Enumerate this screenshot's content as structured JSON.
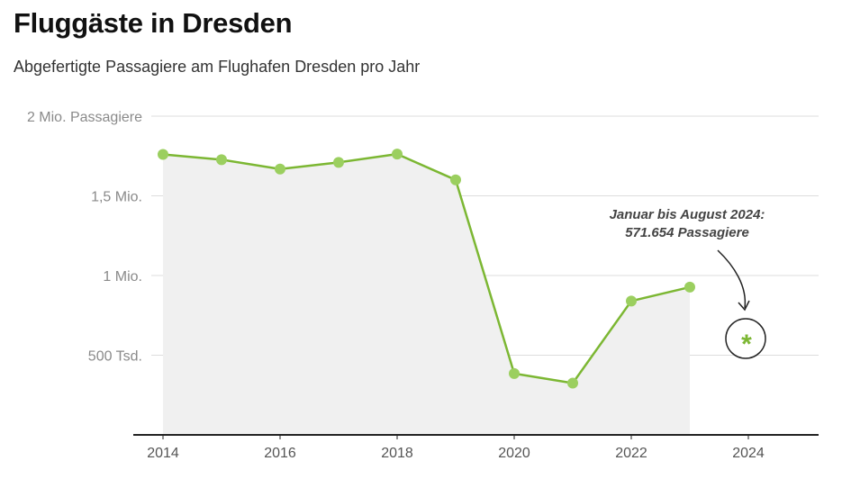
{
  "chart_data": {
    "type": "line",
    "title": "Fluggäste in Dresden",
    "subtitle": "Abgefertigte Passagiere am Flughafen Dresden pro Jahr",
    "xlabel": "",
    "ylabel": "",
    "x": [
      2014,
      2015,
      2016,
      2017,
      2018,
      2019,
      2020,
      2021,
      2022,
      2023
    ],
    "series": [
      {
        "values": [
          1760000,
          1727000,
          1668000,
          1710000,
          1762000,
          1600000,
          385000,
          325000,
          840000,
          927000
        ]
      }
    ],
    "xlim": [
      2014,
      2025.2
    ],
    "ylim": [
      0,
      2000000
    ],
    "x_ticks": [
      {
        "value": 2014,
        "label": "2014"
      },
      {
        "value": 2016,
        "label": "2016"
      },
      {
        "value": 2018,
        "label": "2018"
      },
      {
        "value": 2020,
        "label": "2020"
      },
      {
        "value": 2022,
        "label": "2022"
      },
      {
        "value": 2024,
        "label": "2024"
      }
    ],
    "y_ticks": [
      {
        "value": 500000,
        "label": "500 Tsd."
      },
      {
        "value": 1000000,
        "label": "1 Mio."
      },
      {
        "value": 1500000,
        "label": "1,5 Mio."
      },
      {
        "value": 2000000,
        "label": "2 Mio. Passagiere"
      }
    ],
    "grid": true,
    "area_fill": true,
    "annotation": {
      "lines": [
        "Januar bis August 2024:",
        "571.654 Passagiere"
      ],
      "symbol": "*",
      "x": 2024
    },
    "colors": {
      "line": "#7cb733",
      "marker": "#9bcf5f",
      "area": "#f0f0f0",
      "grid": "#dddddd",
      "axis": "#222222"
    }
  }
}
